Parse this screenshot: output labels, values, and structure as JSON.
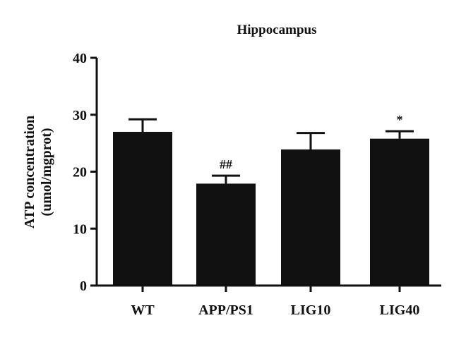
{
  "chart_data": {
    "type": "bar",
    "title": "Hippocampus",
    "ylabel_line1": "ATP concentration",
    "ylabel_line2": "(umol/mgprot)",
    "xlabel": "",
    "categories": [
      "WT",
      "APP/PS1",
      "LIG10",
      "LIG40"
    ],
    "values": [
      27.0,
      17.9,
      23.9,
      25.8
    ],
    "errors": [
      2.2,
      1.4,
      2.9,
      1.3
    ],
    "annotations": [
      "",
      "##",
      "",
      "*"
    ],
    "ylim": [
      0,
      40
    ],
    "yticks": [
      0,
      10,
      20,
      30,
      40
    ],
    "grid": false,
    "legend": "none",
    "bar_color": "#111111"
  }
}
